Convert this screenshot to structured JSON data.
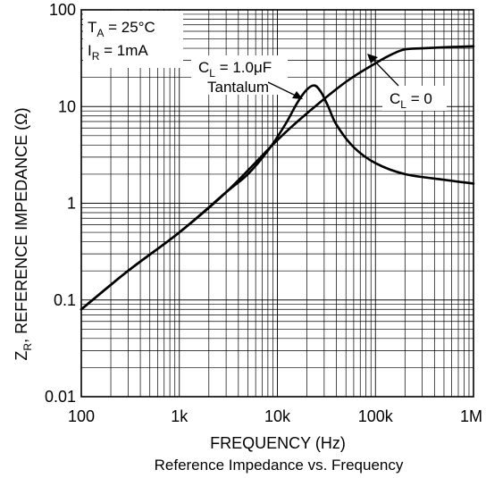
{
  "chart_data": {
    "type": "line",
    "title": "",
    "caption": "Reference Impedance vs. Frequency",
    "xlabel": "FREQUENCY (Hz)",
    "ylabel": {
      "main": "Z",
      "sub": "R",
      "rest": ", REFERENCE IMPEDANCE (Ω)"
    },
    "x_scale": "log",
    "y_scale": "log",
    "xlim": [
      100,
      1000000
    ],
    "ylim": [
      0.01,
      100
    ],
    "x_ticks": [
      {
        "value": 100,
        "label": "100"
      },
      {
        "value": 1000,
        "label": "1k"
      },
      {
        "value": 10000,
        "label": "10k"
      },
      {
        "value": 100000,
        "label": "100k"
      },
      {
        "value": 1000000,
        "label": "1M"
      }
    ],
    "y_ticks": [
      {
        "value": 0.01,
        "label": "0.01"
      },
      {
        "value": 0.1,
        "label": "0.1"
      },
      {
        "value": 1,
        "label": "1"
      },
      {
        "value": 10,
        "label": "10"
      },
      {
        "value": 100,
        "label": "100"
      }
    ],
    "grid": true,
    "conditions": {
      "ta": {
        "main": "T",
        "sub": "A",
        "rest": " = 25°C"
      },
      "ir": {
        "main": "I",
        "sub": "R",
        "rest": " = 1mA"
      }
    },
    "series": [
      {
        "label": {
          "main": "C",
          "sub": "L",
          "rest": " = 0"
        },
        "x": [
          100,
          300,
          1000,
          3000,
          10000,
          20000,
          50000,
          100000,
          150000,
          200000,
          300000,
          500000,
          1000000
        ],
        "y": [
          0.08,
          0.2,
          0.5,
          1.3,
          4.5,
          8.5,
          18,
          28,
          35,
          39,
          40,
          41,
          42
        ]
      },
      {
        "label": {
          "main": "C",
          "sub": "L",
          "rest": " = 1.0μF"
        },
        "label2": "Tantalum",
        "x": [
          100,
          300,
          1000,
          3000,
          5000,
          8000,
          12000,
          16000,
          20000,
          24000,
          28000,
          33000,
          40000,
          60000,
          100000,
          200000,
          500000,
          1000000
        ],
        "y": [
          0.08,
          0.2,
          0.5,
          1.3,
          2.0,
          3.5,
          6.5,
          11,
          15,
          16.5,
          14,
          10,
          6.5,
          3.8,
          2.6,
          2.0,
          1.75,
          1.6
        ]
      }
    ]
  }
}
